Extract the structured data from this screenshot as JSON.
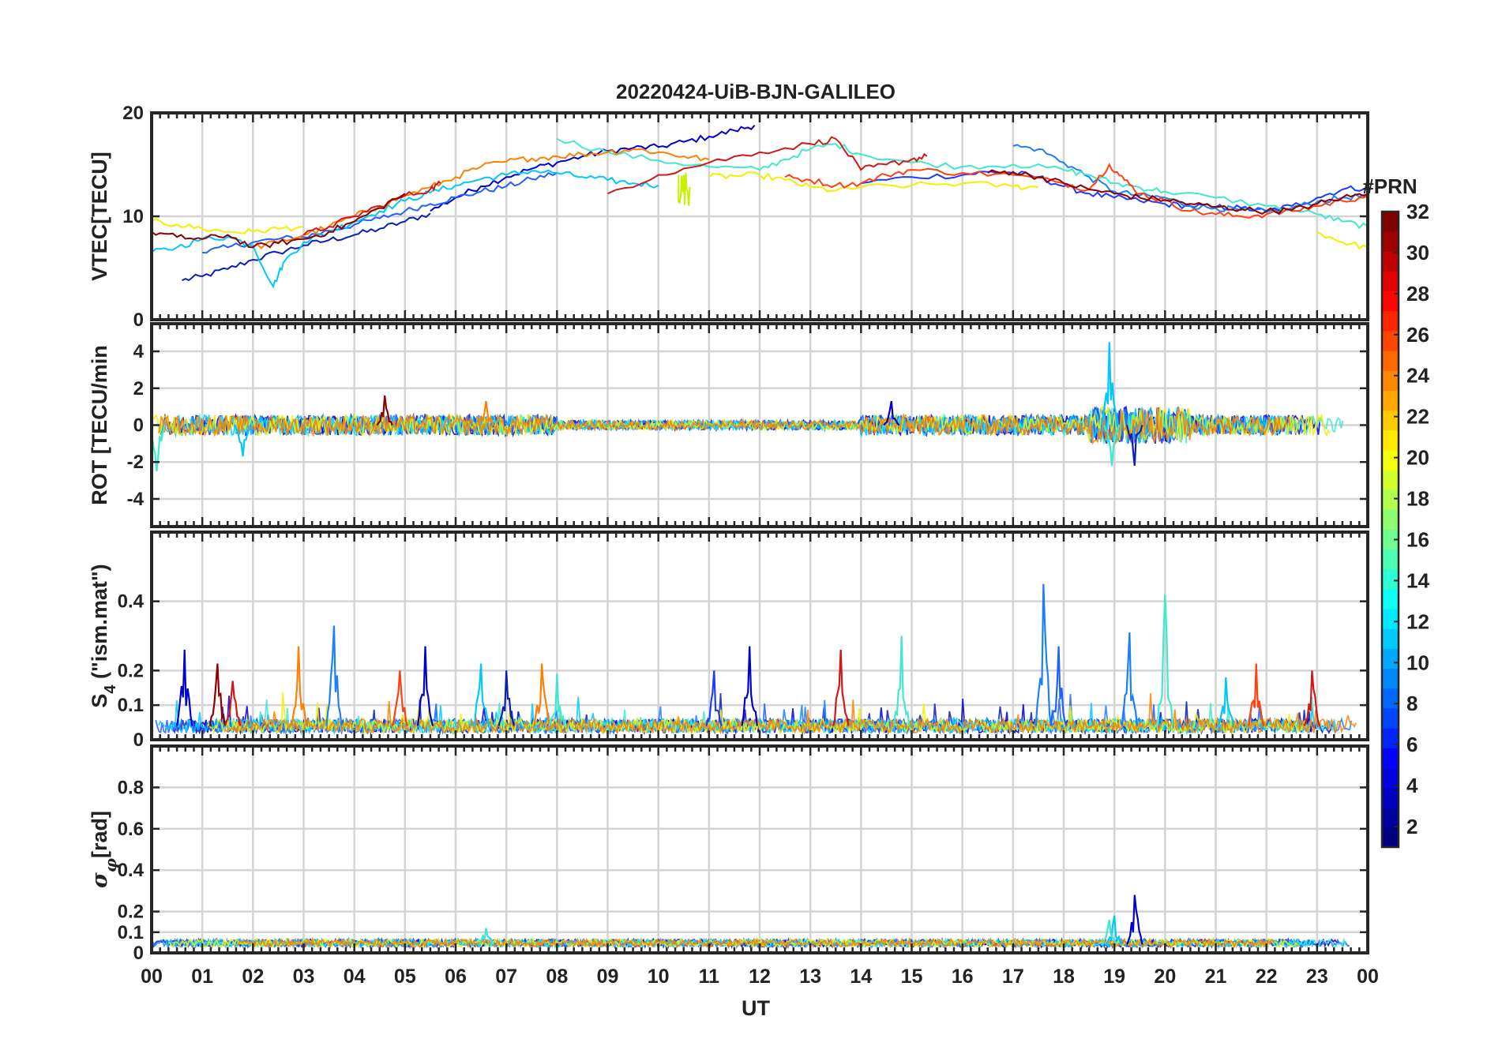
{
  "chart_data": [
    {
      "type": "line",
      "title": "20220424-UiB-BJN-GALILEO",
      "ylabel": "VTEC[TECU]",
      "ylim": [
        0,
        20
      ],
      "yticks": [
        0,
        10,
        20
      ],
      "xlim": [
        0,
        24
      ],
      "grid": true,
      "series": [
        {
          "prn": 2,
          "color": "#0a1fb8",
          "x": [
            0.6,
            1.0,
            1.5,
            2.0,
            2.5,
            3.0,
            3.5,
            4.0,
            4.5,
            5.0,
            5.5
          ],
          "y": [
            3.8,
            4.2,
            4.9,
            5.8,
            6.5,
            7.2,
            7.7,
            8.2,
            8.8,
            9.5,
            10.3
          ]
        },
        {
          "prn": 3,
          "color": "#0000d0",
          "x": [
            5.5,
            6.0,
            6.5,
            7.0,
            7.5,
            8.0,
            8.5,
            9.0,
            9.5,
            10.0,
            10.5,
            11.0,
            11.5,
            11.9
          ],
          "y": [
            10.5,
            11.8,
            12.9,
            13.8,
            14.6,
            15.2,
            15.8,
            16.3,
            16.6,
            16.7,
            17.2,
            17.7,
            18.3,
            18.8
          ]
        },
        {
          "prn": 5,
          "color": "#2060ff",
          "x": [
            1.0,
            1.5,
            2.0,
            2.5,
            3.0,
            3.5,
            4.0,
            4.5,
            5.0,
            5.5,
            6.0,
            6.5,
            7.0,
            7.5,
            8.0
          ],
          "y": [
            6.5,
            7.0,
            7.5,
            7.8,
            8.0,
            8.6,
            9.2,
            9.8,
            10.5,
            11.2,
            11.8,
            12.4,
            12.9,
            13.6,
            14.2
          ]
        },
        {
          "prn": 6,
          "color": "#1e3cff",
          "x": [
            14.0,
            15.0,
            16.0,
            16.5,
            17.0,
            17.5,
            18.0,
            18.5,
            19.0,
            19.5,
            20.0,
            20.5,
            21.0,
            21.5,
            22.0,
            22.5,
            23.0,
            23.5,
            24.0
          ],
          "y": [
            13.2,
            13.8,
            14.0,
            14.3,
            14.2,
            13.8,
            12.9,
            12.2,
            11.8,
            11.5,
            11.2,
            11.0,
            10.9,
            10.8,
            10.5,
            11.0,
            11.8,
            12.6,
            12.8
          ]
        },
        {
          "prn": 9,
          "color": "#1a80ff",
          "x": [
            17.0,
            17.5,
            18.0,
            18.5,
            19.0,
            19.5,
            20.0,
            20.5,
            21.0,
            21.5,
            22.0,
            22.5,
            23.0,
            23.5,
            24.0
          ],
          "y": [
            16.8,
            16.5,
            15.2,
            13.8,
            12.4,
            12.0,
            11.8,
            11.0,
            10.8,
            10.6,
            10.4,
            10.8,
            11.4,
            11.8,
            12.0
          ]
        },
        {
          "prn": 12,
          "color": "#00c8ff",
          "x": [
            0.0,
            0.5,
            1.0,
            1.5,
            2.0,
            2.4,
            2.6,
            3.0,
            3.5,
            4.0,
            4.5,
            5.0,
            5.5,
            6.0,
            6.5,
            7.0,
            7.5,
            8.0,
            8.5,
            9.0,
            9.5,
            10.0
          ],
          "y": [
            6.5,
            7.0,
            7.8,
            8.0,
            7.2,
            3.2,
            5.5,
            7.5,
            8.5,
            9.5,
            10.5,
            11.5,
            12.3,
            13.0,
            13.6,
            14.0,
            14.4,
            14.2,
            13.8,
            13.5,
            13.2,
            13.0
          ]
        },
        {
          "prn": 14,
          "color": "#40e8d0",
          "x": [
            8.0,
            9.0,
            10.0,
            11.0,
            12.0,
            12.5,
            13.0,
            13.5,
            14.0,
            15.0,
            16.0,
            17.0,
            18.0,
            18.5,
            19.0,
            19.5,
            20.0,
            21.0,
            22.0,
            23.0,
            23.5,
            24.0
          ],
          "y": [
            17.5,
            16.2,
            15.4,
            14.8,
            14.5,
            15.5,
            16.5,
            17.0,
            16.0,
            15.2,
            14.8,
            15.0,
            14.5,
            14.0,
            13.2,
            12.8,
            12.4,
            11.8,
            11.0,
            10.2,
            9.5,
            9.0
          ]
        },
        {
          "prn": 19,
          "color": "#f0f000",
          "x": [
            0.0,
            0.5,
            1.0,
            1.5,
            2.0,
            2.5,
            3.0,
            11.0,
            11.5,
            12.0,
            12.5,
            13.0,
            13.5,
            14.0,
            15.0,
            16.0,
            17.0,
            17.5,
            23.0,
            23.5,
            24.0
          ],
          "y": [
            9.5,
            9.2,
            8.8,
            8.5,
            8.5,
            8.8,
            9.0,
            13.8,
            13.9,
            14.0,
            13.5,
            12.8,
            12.5,
            12.8,
            13.0,
            13.2,
            12.9,
            12.8,
            8.5,
            7.5,
            7.0
          ]
        },
        {
          "prn": 24,
          "color": "#ff8000",
          "x": [
            2.0,
            2.5,
            3.0,
            3.5,
            4.0,
            4.5,
            5.0,
            5.5,
            6.0,
            6.5,
            7.0,
            7.5,
            8.0,
            8.5,
            9.0,
            9.5,
            10.0,
            10.5,
            11.0
          ],
          "y": [
            7.0,
            7.5,
            8.2,
            9.0,
            10.0,
            11.0,
            12.0,
            12.8,
            13.8,
            14.8,
            15.3,
            15.6,
            15.8,
            16.0,
            16.2,
            16.5,
            16.2,
            15.8,
            15.5
          ]
        },
        {
          "prn": 26,
          "color": "#ff4010",
          "x": [
            12.5,
            13.0,
            13.5,
            14.0,
            14.5,
            15.0,
            16.0,
            17.0,
            18.0,
            18.5,
            18.9,
            19.2,
            19.5,
            20.0,
            20.5,
            21.0,
            21.5,
            22.0,
            22.5,
            23.0,
            23.5,
            24.0
          ],
          "y": [
            13.8,
            13.5,
            13.0,
            13.2,
            14.0,
            14.5,
            14.2,
            14.0,
            13.2,
            12.6,
            15.0,
            13.5,
            12.2,
            11.5,
            10.5,
            10.2,
            10.0,
            10.2,
            10.5,
            11.0,
            11.5,
            12.0
          ]
        },
        {
          "prn": 29,
          "color": "#d01818",
          "x": [
            3.0,
            3.5,
            4.0,
            4.5,
            5.0,
            5.5,
            5.7,
            9.0,
            10.0,
            11.0,
            12.0,
            13.0,
            13.5,
            14.0,
            14.5,
            15.0,
            15.3
          ],
          "y": [
            8.2,
            9.0,
            10.0,
            11.0,
            12.0,
            12.6,
            13.2,
            12.2,
            14.0,
            15.2,
            16.2,
            17.0,
            17.5,
            14.5,
            15.0,
            15.5,
            15.8
          ]
        },
        {
          "prn": 31,
          "color": "#8c0000",
          "x": [
            0.0,
            0.5,
            1.0,
            1.5,
            2.0,
            2.5,
            3.0,
            3.5,
            4.0,
            4.5,
            5.0,
            16.5,
            17.0,
            17.5,
            18.0,
            18.5,
            19.0,
            19.5,
            20.0,
            20.5,
            21.0,
            21.5,
            22.0,
            22.5,
            23.0,
            23.5,
            24.0
          ],
          "y": [
            8.5,
            8.0,
            7.8,
            8.2,
            7.0,
            7.4,
            7.8,
            8.5,
            9.5,
            10.8,
            12.2,
            14.2,
            14.3,
            13.8,
            13.2,
            12.6,
            12.2,
            11.8,
            11.6,
            11.2,
            10.9,
            10.7,
            10.5,
            10.6,
            11.2,
            11.8,
            12.2
          ]
        }
      ]
    },
    {
      "type": "line",
      "ylabel": "ROT [TECU/min",
      "ylim": [
        -5.5,
        5.5
      ],
      "yticks": [
        -4,
        -2,
        0,
        2,
        4
      ],
      "xlim": [
        0,
        24
      ],
      "grid": true,
      "note": "noisy traces around 0 TECU/min, typical amplitude 0.3-1.5; largest spike about +4.5 near 18.9 UT",
      "spikes": [
        {
          "x": 18.9,
          "y": 4.5,
          "color": "#00c8ff"
        },
        {
          "x": 18.95,
          "y": -2.2,
          "color": "#40e8d0"
        },
        {
          "x": 19.4,
          "y": -2.2,
          "color": "#0a1fb8"
        },
        {
          "x": 0.1,
          "y": -2.5,
          "color": "#40e8d0"
        },
        {
          "x": 4.6,
          "y": 1.6,
          "color": "#8c0000"
        },
        {
          "x": 6.6,
          "y": 1.3,
          "color": "#ff8000"
        },
        {
          "x": 1.8,
          "y": -1.7,
          "color": "#00c8ff"
        },
        {
          "x": 14.6,
          "y": 1.3,
          "color": "#0000d0"
        }
      ]
    },
    {
      "type": "line",
      "ylabel": "S₄ (\"ism.mat\")",
      "ylabel_base": "S",
      "ylabel_sub": "4",
      "ylabel_rest": " (\"ism.mat\")",
      "ylim": [
        0,
        0.6
      ],
      "yticks": [
        0,
        0.1,
        0.2,
        0.4
      ],
      "xlim": [
        0,
        24
      ],
      "grid": true,
      "note": "background level about 0.02-0.05 with intermittent bursts",
      "bursts": [
        {
          "x": 0.65,
          "y": 0.26,
          "color": "#0000d0"
        },
        {
          "x": 1.3,
          "y": 0.22,
          "color": "#8c0000"
        },
        {
          "x": 1.6,
          "y": 0.17,
          "color": "#d01818"
        },
        {
          "x": 2.9,
          "y": 0.27,
          "color": "#ff8000"
        },
        {
          "x": 3.6,
          "y": 0.33,
          "color": "#1a80ff"
        },
        {
          "x": 4.9,
          "y": 0.2,
          "color": "#ff4010"
        },
        {
          "x": 5.4,
          "y": 0.27,
          "color": "#0000d0"
        },
        {
          "x": 6.5,
          "y": 0.22,
          "color": "#00c8ff"
        },
        {
          "x": 7.0,
          "y": 0.2,
          "color": "#0a1fb8"
        },
        {
          "x": 7.7,
          "y": 0.22,
          "color": "#ff8000"
        },
        {
          "x": 8.0,
          "y": 0.19,
          "color": "#40e8d0"
        },
        {
          "x": 11.1,
          "y": 0.2,
          "color": "#1e3cff"
        },
        {
          "x": 11.8,
          "y": 0.27,
          "color": "#0000d0"
        },
        {
          "x": 13.6,
          "y": 0.26,
          "color": "#d01818"
        },
        {
          "x": 14.8,
          "y": 0.3,
          "color": "#40e8d0"
        },
        {
          "x": 17.6,
          "y": 0.45,
          "color": "#1a80ff"
        },
        {
          "x": 17.9,
          "y": 0.27,
          "color": "#2060ff"
        },
        {
          "x": 19.3,
          "y": 0.31,
          "color": "#1a80ff"
        },
        {
          "x": 20.0,
          "y": 0.42,
          "color": "#40e8d0"
        },
        {
          "x": 21.2,
          "y": 0.18,
          "color": "#00c8ff"
        },
        {
          "x": 21.8,
          "y": 0.22,
          "color": "#ff4010"
        },
        {
          "x": 22.9,
          "y": 0.2,
          "color": "#d01818"
        }
      ]
    },
    {
      "type": "line",
      "ylabel": "σ_φ[rad]",
      "ylim": [
        0,
        1
      ],
      "yticks": [
        0,
        0.1,
        0.2,
        0.4,
        0.6,
        0.8
      ],
      "xlim": [
        0,
        24
      ],
      "xlabel": "UT",
      "xticks": [
        "00",
        "01",
        "02",
        "03",
        "04",
        "05",
        "06",
        "07",
        "08",
        "09",
        "10",
        "11",
        "12",
        "13",
        "14",
        "15",
        "16",
        "17",
        "18",
        "19",
        "20",
        "21",
        "22",
        "23",
        "00"
      ],
      "grid": true,
      "note": "mostly 0.02-0.08 rad; spikes near 19 UT",
      "spikes": [
        {
          "x": 19.4,
          "y": 0.28,
          "color": "#0000d0"
        },
        {
          "x": 19.0,
          "y": 0.18,
          "color": "#00c8ff"
        },
        {
          "x": 18.9,
          "y": 0.16,
          "color": "#40e8d0"
        },
        {
          "x": 6.6,
          "y": 0.12,
          "color": "#40e8d0"
        }
      ]
    }
  ],
  "colorbar": {
    "title": "#PRN",
    "ticks": [
      2,
      4,
      6,
      8,
      10,
      12,
      14,
      16,
      18,
      20,
      22,
      24,
      26,
      28,
      30,
      32
    ],
    "range": [
      1,
      32
    ],
    "colormap": "jet"
  }
}
